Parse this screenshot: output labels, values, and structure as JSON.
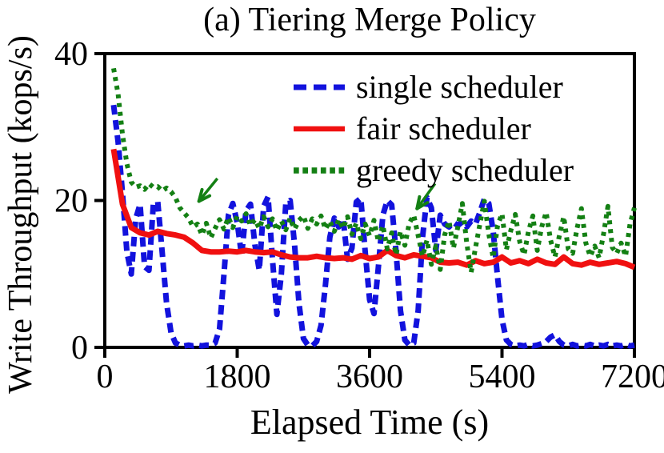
{
  "chart_data": {
    "type": "line",
    "title": "(a) Tiering Merge Policy",
    "xlabel": "Elapsed Time (s)",
    "ylabel": "Write Throughput (kops/s)",
    "xlim": [
      0,
      7200
    ],
    "ylim": [
      0,
      40
    ],
    "grid": false,
    "legend_position": "inside-top-right",
    "axis_color": "#000000",
    "x_ticks": [
      {
        "value": 0,
        "label": "0"
      },
      {
        "value": 1800,
        "label": "1800"
      },
      {
        "value": 3600,
        "label": "3600"
      },
      {
        "value": 5400,
        "label": "5400"
      },
      {
        "value": 7200,
        "label": "7200"
      }
    ],
    "y_ticks": [
      {
        "value": 0,
        "label": "0"
      },
      {
        "value": 20,
        "label": "20"
      },
      {
        "value": 40,
        "label": "40"
      }
    ],
    "series": [
      {
        "name": "single scheduler",
        "color": "#1212dd",
        "style": "dashed",
        "t0": 120,
        "dt": 60,
        "values": [
          33,
          28,
          21,
          13,
          10,
          17.5,
          19.5,
          11,
          10.5,
          19.5,
          19.8,
          13,
          6,
          2,
          0.6,
          0.3,
          0.2,
          0.3,
          0.2,
          0.3,
          0.2,
          0.3,
          0.3,
          0.6,
          2.5,
          10,
          18,
          19.6,
          17,
          12.5,
          18.6,
          19.5,
          14,
          10.5,
          19.2,
          20.5,
          12,
          4.5,
          10,
          19.5,
          20,
          14,
          6,
          1.2,
          0.3,
          0.2,
          0.8,
          3,
          8.5,
          15,
          17.6,
          16.4,
          17.5,
          12,
          13.5,
          19.8,
          20.3,
          13,
          6.5,
          4.6,
          11,
          18,
          20,
          19.4,
          13,
          5,
          1,
          0.3,
          0.6,
          5,
          15,
          20.4,
          19,
          13.2,
          18,
          16.8,
          16.4,
          17,
          16.6,
          17.1,
          16.4,
          17.2,
          16.8,
          18.4,
          20.2,
          19.6,
          15.8,
          9.5,
          3.8,
          1,
          0.4,
          0.2,
          0.3,
          0.2,
          0.4,
          0.2,
          0.3,
          0.5,
          0.8,
          1.4,
          1.7,
          0.8,
          0.3,
          0.2,
          0.4,
          0.2,
          0.3,
          0.2,
          0.4,
          0.2,
          0.3,
          0.2,
          0.4,
          0.2,
          0.3,
          0.2,
          0.4,
          0.2,
          0.3
        ]
      },
      {
        "name": "fair scheduler",
        "color": "#f01010",
        "style": "solid",
        "t0": 120,
        "dt": 120,
        "values": [
          27,
          19.5,
          16.3,
          15.6,
          15.3,
          15.8,
          15.5,
          15.3,
          15.0,
          14.2,
          13.2,
          13.0,
          13.0,
          13.1,
          13.0,
          13.2,
          13.0,
          12.9,
          13.0,
          12.6,
          12.3,
          12.2,
          12.2,
          12.4,
          12.2,
          12.1,
          12.2,
          12.0,
          12.5,
          12.1,
          12.3,
          13.2,
          12.5,
          12.2,
          12.6,
          12.4,
          12.2,
          11.6,
          11.5,
          11.6,
          11.2,
          11.8,
          11.4,
          11.6,
          12.3,
          11.5,
          11.8,
          11.4,
          12.0,
          11.5,
          11.3,
          12.3,
          11.4,
          11.2,
          11.6,
          11.3,
          11.5,
          11.7,
          11.4,
          10.9
        ]
      },
      {
        "name": "greedy scheduler",
        "color": "#148014",
        "style": "dotted",
        "t0": 120,
        "dt": 60,
        "values": [
          38,
          34.5,
          29,
          25,
          22.5,
          21.8,
          22.0,
          21.5,
          22.3,
          21.8,
          21.9,
          21.3,
          21.7,
          21.2,
          20.4,
          19.0,
          18.3,
          17.6,
          16.4,
          16.8,
          15.3,
          16.9,
          14.9,
          16.2,
          17.4,
          16.1,
          17.7,
          16.3,
          17.9,
          17.2,
          18.2,
          16.6,
          17.4,
          16.2,
          17.8,
          16.4,
          17.5,
          15.9,
          17.2,
          16.0,
          17.6,
          16.1,
          17.3,
          17.9,
          16.2,
          17.5,
          16.8,
          17.9,
          16.1,
          17.2,
          15.8,
          17.4,
          16.2,
          17.8,
          15.4,
          16.9,
          14.8,
          16.8,
          15.2,
          17.3,
          14.4,
          16.6,
          13.4,
          15.6,
          12.6,
          15.8,
          13.9,
          16.9,
          18.0,
          15.2,
          12.4,
          14.6,
          11.3,
          13.8,
          10.6,
          15.3,
          17.2,
          13.5,
          16.4,
          19.6,
          14.2,
          10.2,
          13.6,
          16.8,
          19.9,
          15.4,
          12.2,
          16.6,
          18.2,
          13.3,
          15.9,
          18.1,
          14.4,
          12.6,
          15.8,
          17.9,
          13.2,
          16.4,
          18.4,
          14.6,
          12.3,
          15.2,
          17.8,
          13.4,
          12.8,
          16.2,
          18.9,
          14.2,
          12.4,
          13.8,
          12.2,
          15.4,
          19.2,
          13.6,
          12.8,
          14.2,
          12.4,
          16.8,
          19.0
        ]
      }
    ],
    "annotations": {
      "arrow_color": "#148014",
      "arrows": [
        {
          "from_x": 1530,
          "from_y": 23.0,
          "to_x": 1280,
          "to_y": 19.9
        },
        {
          "from_x": 4490,
          "from_y": 22.3,
          "to_x": 4245,
          "to_y": 18.9
        }
      ]
    }
  }
}
